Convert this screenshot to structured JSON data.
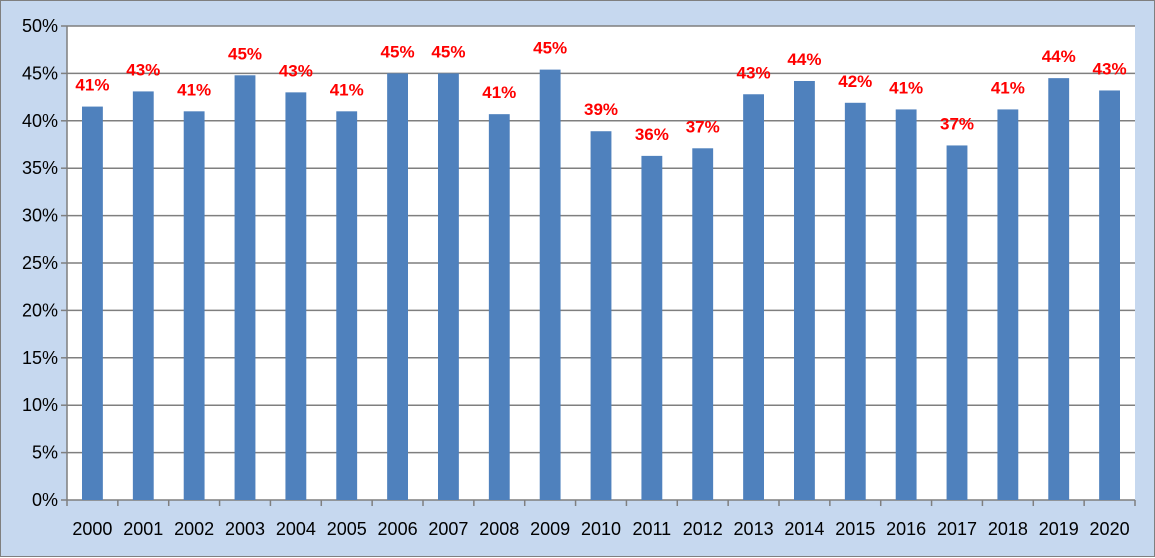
{
  "chart_data": {
    "type": "bar",
    "title": "",
    "xlabel": "",
    "ylabel": "",
    "categories": [
      "2000",
      "2001",
      "2002",
      "2003",
      "2004",
      "2005",
      "2006",
      "2007",
      "2008",
      "2009",
      "2010",
      "2011",
      "2012",
      "2013",
      "2014",
      "2015",
      "2016",
      "2017",
      "2018",
      "2019",
      "2020"
    ],
    "values": [
      41.5,
      43.1,
      41.0,
      44.8,
      43.0,
      41.0,
      45.0,
      45.0,
      40.7,
      45.4,
      38.9,
      36.3,
      37.1,
      42.8,
      44.2,
      41.9,
      41.2,
      37.4,
      41.2,
      44.5,
      43.2
    ],
    "data_labels": [
      "41%",
      "43%",
      "41%",
      "45%",
      "43%",
      "41%",
      "45%",
      "45%",
      "41%",
      "45%",
      "39%",
      "36%",
      "37%",
      "43%",
      "44%",
      "42%",
      "41%",
      "37%",
      "41%",
      "44%",
      "43%"
    ],
    "y_ticks": [
      "0%",
      "5%",
      "10%",
      "15%",
      "20%",
      "25%",
      "30%",
      "35%",
      "40%",
      "45%",
      "50%"
    ],
    "ylim": [
      0,
      50
    ],
    "grid": true,
    "legend": "none",
    "colors": {
      "bar": "#4f81bd",
      "data_label": "#ff0000",
      "frame_background": "#c6d8ef",
      "plot_background": "#ffffff",
      "gridline": "#7f7f7f"
    }
  }
}
